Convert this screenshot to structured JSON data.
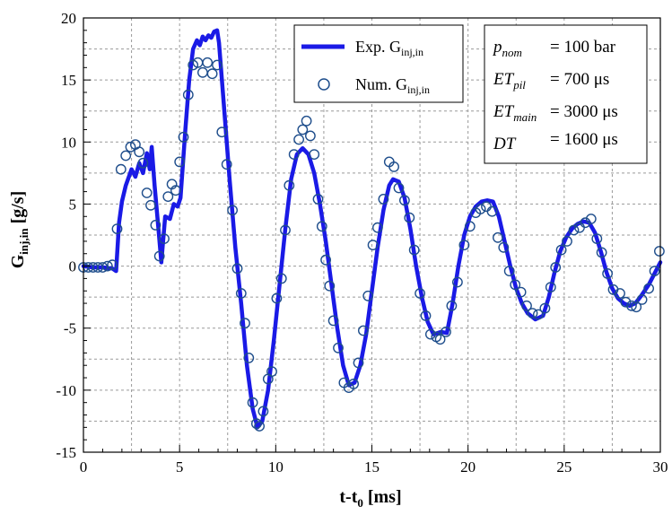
{
  "chart_data": {
    "type": "line",
    "xlabel": {
      "main": "t-t",
      "sub": "0",
      "unit": " [ms]"
    },
    "ylabel": {
      "main": "G",
      "sub": "inj,in",
      "unit": " [g/s]"
    },
    "xlim": [
      0,
      30
    ],
    "ylim": [
      -15,
      20
    ],
    "xticks": [
      0,
      5,
      10,
      15,
      20,
      25,
      30
    ],
    "yticks": [
      -15,
      -10,
      -5,
      0,
      5,
      10,
      15,
      20
    ],
    "grid": true,
    "legend": {
      "position": "top-center",
      "entries": [
        {
          "main": "Exp. G",
          "sub": "inj,in"
        },
        {
          "main": "Num. G",
          "sub": "inj,in"
        }
      ]
    },
    "annotation_box": {
      "position": "top-right",
      "lines": [
        {
          "var": "p",
          "sub": "nom",
          "value": "= 100 bar"
        },
        {
          "var": "ET",
          "sub": "pil",
          "value": "= 700 μs"
        },
        {
          "var": "ET",
          "sub": "main",
          "value": "= 3000 μs"
        },
        {
          "var": "DT",
          "sub": "",
          "value": "= 1600 μs"
        }
      ]
    },
    "series": [
      {
        "name": "Exp. G_inj,in",
        "style": "line",
        "color": "#1a1ae6",
        "points": [
          [
            0,
            0
          ],
          [
            0.5,
            -0.1
          ],
          [
            1,
            -0.1
          ],
          [
            1.5,
            -0.2
          ],
          [
            1.7,
            -0.4
          ],
          [
            1.85,
            3.5
          ],
          [
            2.0,
            5.2
          ],
          [
            2.2,
            6.5
          ],
          [
            2.5,
            7.8
          ],
          [
            2.7,
            7.2
          ],
          [
            2.9,
            8.3
          ],
          [
            3.1,
            7.5
          ],
          [
            3.3,
            9.1
          ],
          [
            3.45,
            7.8
          ],
          [
            3.55,
            9.6
          ],
          [
            3.7,
            6.5
          ],
          [
            3.9,
            3.0
          ],
          [
            4.05,
            0.3
          ],
          [
            4.25,
            4.0
          ],
          [
            4.5,
            3.8
          ],
          [
            4.7,
            5.0
          ],
          [
            4.9,
            4.8
          ],
          [
            5.05,
            5.5
          ],
          [
            5.3,
            11.0
          ],
          [
            5.5,
            15.0
          ],
          [
            5.7,
            17.5
          ],
          [
            5.9,
            18.2
          ],
          [
            6.05,
            17.8
          ],
          [
            6.2,
            18.5
          ],
          [
            6.35,
            18.2
          ],
          [
            6.5,
            18.6
          ],
          [
            6.65,
            18.4
          ],
          [
            6.8,
            18.9
          ],
          [
            6.95,
            19.0
          ],
          [
            7.05,
            18.0
          ],
          [
            7.3,
            13.0
          ],
          [
            7.6,
            7.0
          ],
          [
            7.9,
            1.5
          ],
          [
            8.2,
            -3.0
          ],
          [
            8.5,
            -8.0
          ],
          [
            8.8,
            -11.5
          ],
          [
            9.05,
            -13.0
          ],
          [
            9.3,
            -12.5
          ],
          [
            9.6,
            -10.0
          ],
          [
            9.9,
            -6.0
          ],
          [
            10.2,
            -1.5
          ],
          [
            10.5,
            3.0
          ],
          [
            10.8,
            7.0
          ],
          [
            11.1,
            9.0
          ],
          [
            11.4,
            9.5
          ],
          [
            11.7,
            9.0
          ],
          [
            12.0,
            7.5
          ],
          [
            12.3,
            5.0
          ],
          [
            12.6,
            2.0
          ],
          [
            12.9,
            -1.5
          ],
          [
            13.2,
            -5.0
          ],
          [
            13.5,
            -8.0
          ],
          [
            13.8,
            -9.6
          ],
          [
            14.1,
            -9.4
          ],
          [
            14.4,
            -8.0
          ],
          [
            14.7,
            -5.5
          ],
          [
            15.0,
            -2.0
          ],
          [
            15.3,
            1.5
          ],
          [
            15.6,
            4.5
          ],
          [
            15.9,
            6.5
          ],
          [
            16.1,
            7.0
          ],
          [
            16.4,
            6.8
          ],
          [
            16.7,
            5.5
          ],
          [
            17.0,
            3.0
          ],
          [
            17.3,
            0.0
          ],
          [
            17.6,
            -2.5
          ],
          [
            17.9,
            -4.5
          ],
          [
            18.2,
            -5.5
          ],
          [
            18.6,
            -5.3
          ],
          [
            18.9,
            -5.4
          ],
          [
            19.2,
            -3.0
          ],
          [
            19.5,
            0.0
          ],
          [
            19.8,
            2.5
          ],
          [
            20.1,
            4.0
          ],
          [
            20.4,
            4.8
          ],
          [
            20.7,
            5.2
          ],
          [
            21.0,
            5.3
          ],
          [
            21.3,
            5.2
          ],
          [
            21.6,
            4.0
          ],
          [
            21.9,
            2.0
          ],
          [
            22.2,
            0.0
          ],
          [
            22.5,
            -1.8
          ],
          [
            22.8,
            -3.0
          ],
          [
            23.1,
            -3.8
          ],
          [
            23.5,
            -4.3
          ],
          [
            23.9,
            -4.0
          ],
          [
            24.2,
            -2.5
          ],
          [
            24.5,
            -0.5
          ],
          [
            24.8,
            1.2
          ],
          [
            25.1,
            2.3
          ],
          [
            25.4,
            3.0
          ],
          [
            25.7,
            3.4
          ],
          [
            26.0,
            3.6
          ],
          [
            26.3,
            3.5
          ],
          [
            26.6,
            2.7
          ],
          [
            26.9,
            1.2
          ],
          [
            27.2,
            -0.5
          ],
          [
            27.5,
            -1.8
          ],
          [
            27.8,
            -2.6
          ],
          [
            28.1,
            -3.0
          ],
          [
            28.4,
            -3.2
          ],
          [
            28.7,
            -3.0
          ],
          [
            29.0,
            -2.4
          ],
          [
            29.4,
            -1.5
          ],
          [
            29.8,
            -0.3
          ],
          [
            30.0,
            0.3
          ]
        ]
      },
      {
        "name": "Num. G_inj,in",
        "style": "markers",
        "marker": "circle",
        "color": "#1f4e8c",
        "points": [
          [
            0,
            -0.1
          ],
          [
            0.25,
            -0.1
          ],
          [
            0.5,
            -0.1
          ],
          [
            0.75,
            -0.1
          ],
          [
            1.0,
            -0.1
          ],
          [
            1.25,
            0.0
          ],
          [
            1.5,
            0.1
          ],
          [
            1.75,
            3.0
          ],
          [
            1.95,
            7.8
          ],
          [
            2.2,
            8.9
          ],
          [
            2.45,
            9.6
          ],
          [
            2.7,
            9.8
          ],
          [
            2.9,
            9.2
          ],
          [
            3.1,
            8.3
          ],
          [
            3.3,
            5.9
          ],
          [
            3.5,
            4.9
          ],
          [
            3.75,
            3.3
          ],
          [
            3.95,
            0.8
          ],
          [
            4.2,
            2.2
          ],
          [
            4.4,
            5.6
          ],
          [
            4.6,
            6.6
          ],
          [
            4.8,
            6.1
          ],
          [
            5.0,
            8.4
          ],
          [
            5.2,
            10.4
          ],
          [
            5.45,
            13.8
          ],
          [
            5.7,
            16.2
          ],
          [
            5.95,
            16.4
          ],
          [
            6.2,
            15.6
          ],
          [
            6.45,
            16.4
          ],
          [
            6.7,
            15.5
          ],
          [
            6.95,
            16.2
          ],
          [
            7.2,
            10.8
          ],
          [
            7.45,
            8.2
          ],
          [
            7.75,
            4.5
          ],
          [
            8.0,
            -0.2
          ],
          [
            8.2,
            -2.2
          ],
          [
            8.4,
            -4.6
          ],
          [
            8.6,
            -7.4
          ],
          [
            8.8,
            -11.0
          ],
          [
            9.0,
            -12.7
          ],
          [
            9.15,
            -12.9
          ],
          [
            9.35,
            -11.7
          ],
          [
            9.6,
            -9.1
          ],
          [
            9.8,
            -8.5
          ],
          [
            10.05,
            -2.6
          ],
          [
            10.3,
            -1.0
          ],
          [
            10.5,
            2.9
          ],
          [
            10.7,
            6.5
          ],
          [
            10.95,
            9.0
          ],
          [
            11.2,
            10.2
          ],
          [
            11.4,
            11.0
          ],
          [
            11.6,
            11.7
          ],
          [
            11.8,
            10.5
          ],
          [
            12.0,
            9.0
          ],
          [
            12.2,
            5.4
          ],
          [
            12.4,
            3.2
          ],
          [
            12.6,
            0.5
          ],
          [
            12.8,
            -1.6
          ],
          [
            13.0,
            -4.4
          ],
          [
            13.25,
            -6.6
          ],
          [
            13.55,
            -9.4
          ],
          [
            13.8,
            -9.8
          ],
          [
            14.05,
            -9.5
          ],
          [
            14.3,
            -7.8
          ],
          [
            14.55,
            -5.2
          ],
          [
            14.8,
            -2.4
          ],
          [
            15.05,
            1.7
          ],
          [
            15.3,
            3.1
          ],
          [
            15.6,
            5.4
          ],
          [
            15.9,
            8.4
          ],
          [
            16.15,
            8.0
          ],
          [
            16.4,
            6.3
          ],
          [
            16.7,
            5.3
          ],
          [
            16.95,
            3.9
          ],
          [
            17.2,
            1.3
          ],
          [
            17.5,
            -2.2
          ],
          [
            17.8,
            -4.0
          ],
          [
            18.05,
            -5.5
          ],
          [
            18.35,
            -5.7
          ],
          [
            18.55,
            -5.9
          ],
          [
            18.85,
            -5.3
          ],
          [
            19.15,
            -3.2
          ],
          [
            19.45,
            -1.3
          ],
          [
            19.8,
            1.7
          ],
          [
            20.1,
            3.2
          ],
          [
            20.4,
            4.3
          ],
          [
            20.65,
            4.6
          ],
          [
            20.95,
            4.8
          ],
          [
            21.25,
            4.4
          ],
          [
            21.55,
            2.3
          ],
          [
            21.85,
            1.5
          ],
          [
            22.15,
            -0.4
          ],
          [
            22.45,
            -1.5
          ],
          [
            22.75,
            -2.1
          ],
          [
            23.05,
            -3.2
          ],
          [
            23.35,
            -3.8
          ],
          [
            23.65,
            -3.9
          ],
          [
            24.0,
            -3.4
          ],
          [
            24.3,
            -1.7
          ],
          [
            24.55,
            -0.1
          ],
          [
            24.85,
            1.3
          ],
          [
            25.15,
            2.0
          ],
          [
            25.5,
            2.9
          ],
          [
            25.8,
            3.1
          ],
          [
            26.1,
            3.5
          ],
          [
            26.4,
            3.8
          ],
          [
            26.7,
            2.2
          ],
          [
            26.95,
            1.1
          ],
          [
            27.25,
            -0.6
          ],
          [
            27.55,
            -1.9
          ],
          [
            27.9,
            -2.2
          ],
          [
            28.2,
            -2.9
          ],
          [
            28.5,
            -3.2
          ],
          [
            28.75,
            -3.3
          ],
          [
            29.05,
            -2.7
          ],
          [
            29.4,
            -1.8
          ],
          [
            29.7,
            -0.4
          ],
          [
            29.95,
            1.2
          ]
        ]
      }
    ]
  }
}
